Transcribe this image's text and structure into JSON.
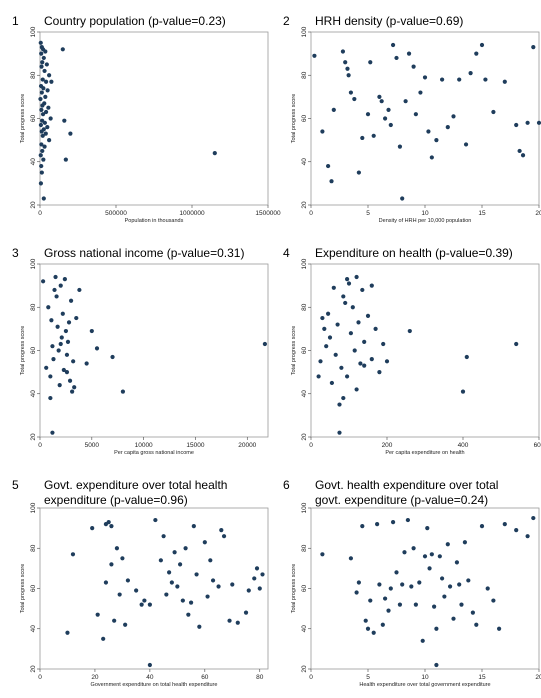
{
  "chart_data": [
    {
      "type": "scatter",
      "number": "1",
      "title": "Country population (p-value=0.23)",
      "xlabel": "Population in thousands",
      "ylabel": "Total progress score",
      "xlim": [
        0,
        1500000
      ],
      "ylim": [
        20,
        100
      ],
      "xticks": [
        0,
        500000,
        1000000,
        1500000
      ],
      "xtick_labels": [
        "0",
        "500000",
        "1000000",
        "1500000"
      ],
      "yticks": [
        20,
        40,
        60,
        80,
        100
      ],
      "ytick_labels": [
        "20",
        "40",
        "60",
        "80",
        "100"
      ],
      "points": [
        [
          5000,
          95
        ],
        [
          12000,
          93
        ],
        [
          20000,
          92
        ],
        [
          35000,
          91
        ],
        [
          8000,
          90
        ],
        [
          25000,
          88
        ],
        [
          15000,
          86
        ],
        [
          45000,
          85
        ],
        [
          10000,
          84
        ],
        [
          30000,
          82
        ],
        [
          60000,
          80
        ],
        [
          18000,
          78
        ],
        [
          40000,
          77
        ],
        [
          75000,
          77
        ],
        [
          7000,
          75
        ],
        [
          22000,
          74
        ],
        [
          50000,
          73
        ],
        [
          12000,
          72
        ],
        [
          35000,
          70
        ],
        [
          3000,
          69
        ],
        [
          28000,
          67
        ],
        [
          16000,
          66
        ],
        [
          55000,
          65
        ],
        [
          9000,
          64
        ],
        [
          40000,
          63
        ],
        [
          20000,
          62
        ],
        [
          70000,
          60
        ],
        [
          14000,
          59
        ],
        [
          32000,
          58
        ],
        [
          6000,
          57
        ],
        [
          48000,
          56
        ],
        [
          25000,
          55
        ],
        [
          11000,
          54
        ],
        [
          38000,
          53
        ],
        [
          18000,
          52
        ],
        [
          60000,
          50
        ],
        [
          9000,
          48
        ],
        [
          30000,
          47
        ],
        [
          15000,
          45
        ],
        [
          5000,
          43
        ],
        [
          22000,
          41
        ],
        [
          8000,
          38
        ],
        [
          12000,
          35
        ],
        [
          6000,
          30
        ],
        [
          25000,
          23
        ],
        [
          150000,
          92
        ],
        [
          160000,
          59
        ],
        [
          200000,
          53
        ],
        [
          170000,
          41
        ],
        [
          1150000,
          44
        ]
      ]
    },
    {
      "type": "scatter",
      "number": "2",
      "title": "HRH density (p-value=0.69)",
      "xlabel": "Density of HRH per 10,000 population",
      "ylabel": "Total progress score",
      "xlim": [
        0,
        20
      ],
      "ylim": [
        20,
        100
      ],
      "xticks": [
        0,
        5,
        10,
        15,
        20
      ],
      "xtick_labels": [
        "0",
        "5",
        "10",
        "15",
        "20"
      ],
      "yticks": [
        20,
        40,
        60,
        80,
        100
      ],
      "ytick_labels": [
        "20",
        "40",
        "60",
        "80",
        "100"
      ],
      "points": [
        [
          0.3,
          89
        ],
        [
          1,
          54
        ],
        [
          1.5,
          38
        ],
        [
          1.8,
          31
        ],
        [
          2,
          64
        ],
        [
          2.8,
          91
        ],
        [
          3,
          86
        ],
        [
          3.2,
          83
        ],
        [
          3.3,
          80
        ],
        [
          3.5,
          72
        ],
        [
          3.8,
          69
        ],
        [
          4.2,
          35
        ],
        [
          4.5,
          51
        ],
        [
          5,
          62
        ],
        [
          5.2,
          86
        ],
        [
          5.5,
          52
        ],
        [
          6,
          70
        ],
        [
          6.2,
          68
        ],
        [
          6.5,
          60
        ],
        [
          6.8,
          64
        ],
        [
          7,
          57
        ],
        [
          7.2,
          94
        ],
        [
          7.5,
          88
        ],
        [
          7.8,
          47
        ],
        [
          8,
          23
        ],
        [
          8.3,
          68
        ],
        [
          8.6,
          90
        ],
        [
          9,
          84
        ],
        [
          9.2,
          62
        ],
        [
          9.6,
          72
        ],
        [
          10,
          79
        ],
        [
          10.3,
          54
        ],
        [
          10.6,
          42
        ],
        [
          11,
          50
        ],
        [
          11.5,
          78
        ],
        [
          12,
          56
        ],
        [
          12.5,
          61
        ],
        [
          13,
          78
        ],
        [
          13.6,
          48
        ],
        [
          14,
          81
        ],
        [
          14.5,
          90
        ],
        [
          15,
          94
        ],
        [
          15.3,
          78
        ],
        [
          16,
          63
        ],
        [
          17,
          77
        ],
        [
          18,
          57
        ],
        [
          18.3,
          45
        ],
        [
          18.6,
          43
        ],
        [
          19,
          58
        ],
        [
          19.5,
          93
        ],
        [
          20,
          58
        ]
      ]
    },
    {
      "type": "scatter",
      "number": "3",
      "title": "Gross national income (p-value=0.31)",
      "xlabel": "Per capita gross national income",
      "ylabel": "Total progress score",
      "xlim": [
        0,
        22000
      ],
      "ylim": [
        20,
        100
      ],
      "xticks": [
        0,
        5000,
        10000,
        15000,
        20000
      ],
      "xtick_labels": [
        "0",
        "5000",
        "10000",
        "15000",
        "20000"
      ],
      "yticks": [
        20,
        40,
        60,
        80,
        100
      ],
      "ytick_labels": [
        "20",
        "40",
        "60",
        "80",
        "100"
      ],
      "points": [
        [
          300,
          92
        ],
        [
          600,
          52
        ],
        [
          800,
          80
        ],
        [
          1000,
          48
        ],
        [
          1100,
          74
        ],
        [
          1200,
          62
        ],
        [
          1300,
          56
        ],
        [
          1400,
          88
        ],
        [
          1500,
          94
        ],
        [
          1600,
          85
        ],
        [
          1700,
          71
        ],
        [
          1800,
          60
        ],
        [
          1900,
          44
        ],
        [
          2000,
          90
        ],
        [
          2100,
          66
        ],
        [
          2200,
          77
        ],
        [
          2300,
          51
        ],
        [
          2400,
          93
        ],
        [
          2500,
          69
        ],
        [
          2600,
          58
        ],
        [
          2700,
          64
        ],
        [
          2800,
          73
        ],
        [
          2900,
          46
        ],
        [
          3000,
          83
        ],
        [
          3100,
          41
        ],
        [
          3200,
          55
        ],
        [
          3300,
          43
        ],
        [
          3500,
          75
        ],
        [
          3800,
          88
        ],
        [
          1000,
          38
        ],
        [
          1200,
          22
        ],
        [
          2000,
          63
        ],
        [
          2600,
          50
        ],
        [
          4500,
          54
        ],
        [
          5000,
          69
        ],
        [
          5500,
          61
        ],
        [
          7000,
          57
        ],
        [
          8000,
          41
        ],
        [
          21700,
          63
        ]
      ]
    },
    {
      "type": "scatter",
      "number": "4",
      "title": "Expenditure on health (p-value=0.39)",
      "xlabel": "Per capita expenditure on health",
      "ylabel": "Total progress score",
      "xlim": [
        0,
        600
      ],
      "ylim": [
        20,
        100
      ],
      "xticks": [
        0,
        200,
        400,
        600
      ],
      "xtick_labels": [
        "0",
        "200",
        "400",
        "600"
      ],
      "yticks": [
        20,
        40,
        60,
        80,
        100
      ],
      "ytick_labels": [
        "20",
        "40",
        "60",
        "80",
        "100"
      ],
      "points": [
        [
          20,
          48
        ],
        [
          25,
          55
        ],
        [
          30,
          75
        ],
        [
          35,
          70
        ],
        [
          40,
          62
        ],
        [
          45,
          77
        ],
        [
          50,
          66
        ],
        [
          55,
          45
        ],
        [
          60,
          89
        ],
        [
          65,
          58
        ],
        [
          70,
          72
        ],
        [
          75,
          35
        ],
        [
          80,
          52
        ],
        [
          85,
          85
        ],
        [
          90,
          82
        ],
        [
          95,
          93
        ],
        [
          100,
          91
        ],
        [
          105,
          68
        ],
        [
          110,
          80
        ],
        [
          115,
          60
        ],
        [
          120,
          94
        ],
        [
          125,
          73
        ],
        [
          130,
          54
        ],
        [
          135,
          88
        ],
        [
          140,
          64
        ],
        [
          150,
          76
        ],
        [
          160,
          90
        ],
        [
          170,
          70
        ],
        [
          180,
          50
        ],
        [
          190,
          63
        ],
        [
          200,
          55
        ],
        [
          75,
          22
        ],
        [
          85,
          38
        ],
        [
          95,
          48
        ],
        [
          120,
          42
        ],
        [
          140,
          53
        ],
        [
          160,
          56
        ],
        [
          260,
          69
        ],
        [
          400,
          41
        ],
        [
          410,
          57
        ],
        [
          540,
          63
        ]
      ]
    },
    {
      "type": "scatter",
      "number": "5",
      "title": "Govt. expenditure over total health\nexpenditure (p-value=0.96)",
      "xlabel": "Government expenditure on total health expenditure",
      "ylabel": "Total progress score",
      "xlim": [
        0,
        83
      ],
      "ylim": [
        20,
        100
      ],
      "xticks": [
        0,
        20,
        40,
        60,
        80
      ],
      "xtick_labels": [
        "0",
        "20",
        "40",
        "60",
        "80"
      ],
      "yticks": [
        20,
        40,
        60,
        80,
        100
      ],
      "ytick_labels": [
        "20",
        "40",
        "60",
        "80",
        "100"
      ],
      "points": [
        [
          10,
          38
        ],
        [
          12,
          77
        ],
        [
          19,
          90
        ],
        [
          21,
          47
        ],
        [
          23,
          35
        ],
        [
          24,
          63
        ],
        [
          24,
          92
        ],
        [
          25,
          93
        ],
        [
          26,
          91
        ],
        [
          26,
          72
        ],
        [
          27,
          44
        ],
        [
          28,
          80
        ],
        [
          29,
          57
        ],
        [
          30,
          75
        ],
        [
          31,
          42
        ],
        [
          32,
          64
        ],
        [
          35,
          59
        ],
        [
          37,
          52
        ],
        [
          38,
          54
        ],
        [
          40,
          22
        ],
        [
          40,
          52
        ],
        [
          42,
          94
        ],
        [
          44,
          74
        ],
        [
          45,
          86
        ],
        [
          46,
          57
        ],
        [
          47,
          68
        ],
        [
          48,
          63
        ],
        [
          49,
          78
        ],
        [
          50,
          61
        ],
        [
          51,
          72
        ],
        [
          52,
          54
        ],
        [
          53,
          80
        ],
        [
          54,
          47
        ],
        [
          55,
          53
        ],
        [
          56,
          91
        ],
        [
          57,
          67
        ],
        [
          58,
          41
        ],
        [
          60,
          83
        ],
        [
          61,
          56
        ],
        [
          62,
          74
        ],
        [
          63,
          64
        ],
        [
          65,
          61
        ],
        [
          66,
          89
        ],
        [
          67,
          86
        ],
        [
          69,
          44
        ],
        [
          70,
          62
        ],
        [
          72,
          43
        ],
        [
          75,
          48
        ],
        [
          76,
          59
        ],
        [
          78,
          65
        ],
        [
          79,
          70
        ],
        [
          80,
          60
        ],
        [
          81,
          67
        ]
      ]
    },
    {
      "type": "scatter",
      "number": "6",
      "title": "Govt. health expenditure over total\ngovt. expenditure (p-value=0.24)",
      "xlabel": "Health expenditure over total government expenditure",
      "ylabel": "Total progress score",
      "xlim": [
        0,
        20
      ],
      "ylim": [
        20,
        100
      ],
      "xticks": [
        0,
        5,
        10,
        15,
        20
      ],
      "xtick_labels": [
        "0",
        "5",
        "10",
        "15",
        "20"
      ],
      "yticks": [
        20,
        40,
        60,
        80,
        100
      ],
      "ytick_labels": [
        "20",
        "40",
        "60",
        "80",
        "100"
      ],
      "points": [
        [
          1,
          77
        ],
        [
          3.5,
          75
        ],
        [
          4,
          58
        ],
        [
          4.2,
          63
        ],
        [
          4.5,
          91
        ],
        [
          4.8,
          44
        ],
        [
          5,
          40
        ],
        [
          5.2,
          54
        ],
        [
          5.5,
          38
        ],
        [
          5.8,
          92
        ],
        [
          6,
          62
        ],
        [
          6.3,
          42
        ],
        [
          6.5,
          55
        ],
        [
          6.8,
          49
        ],
        [
          7,
          60
        ],
        [
          7.2,
          93
        ],
        [
          7.5,
          68
        ],
        [
          7.8,
          52
        ],
        [
          8,
          62
        ],
        [
          8.2,
          78
        ],
        [
          8.5,
          94
        ],
        [
          8.8,
          61
        ],
        [
          9,
          80
        ],
        [
          9.2,
          52
        ],
        [
          9.5,
          63
        ],
        [
          9.8,
          34
        ],
        [
          10,
          76
        ],
        [
          10.2,
          90
        ],
        [
          10.4,
          70
        ],
        [
          10.6,
          77
        ],
        [
          10.8,
          51
        ],
        [
          11,
          40
        ],
        [
          11,
          22
        ],
        [
          11.3,
          76
        ],
        [
          11.5,
          65
        ],
        [
          11.7,
          56
        ],
        [
          12,
          82
        ],
        [
          12.2,
          61
        ],
        [
          12.5,
          45
        ],
        [
          12.8,
          73
        ],
        [
          13,
          62
        ],
        [
          13.2,
          52
        ],
        [
          13.5,
          83
        ],
        [
          13.8,
          64
        ],
        [
          14.2,
          48
        ],
        [
          14.5,
          42
        ],
        [
          15,
          91
        ],
        [
          15.5,
          60
        ],
        [
          16,
          54
        ],
        [
          16.5,
          40
        ],
        [
          17,
          92
        ],
        [
          18,
          89
        ],
        [
          19,
          86
        ],
        [
          19.5,
          95
        ]
      ]
    }
  ]
}
